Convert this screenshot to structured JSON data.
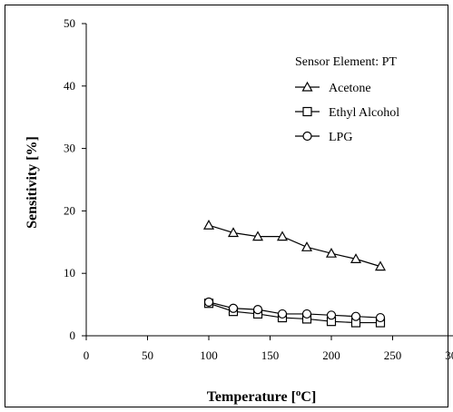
{
  "chart_data": {
    "type": "line",
    "title": "",
    "xlabel": "Temperature [°C]",
    "xlabel_parts": {
      "before": "Temperature [",
      "superscript": "o",
      "after": "C]"
    },
    "ylabel": "Sensitivity [%]",
    "xlim": [
      0,
      300
    ],
    "ylim": [
      0,
      50
    ],
    "xticks": [
      0,
      50,
      100,
      150,
      200,
      250,
      300
    ],
    "xtick_labels": [
      "0",
      "50",
      "100",
      "150",
      "200",
      "250",
      "300"
    ],
    "yticks": [
      0,
      10,
      20,
      30,
      40,
      50
    ],
    "ytick_labels": [
      "0",
      "10",
      "20",
      "30",
      "40",
      "50"
    ],
    "grid": false,
    "legend": {
      "title": "Sensor Element: PT",
      "placement": "top-right"
    },
    "x": [
      100,
      120,
      140,
      160,
      180,
      200,
      220,
      240
    ],
    "series": [
      {
        "name": "Acetone",
        "marker": "triangle",
        "values": [
          17.7,
          16.5,
          15.9,
          15.9,
          14.2,
          13.2,
          12.3,
          11.1
        ]
      },
      {
        "name": "Ethyl Alcohol",
        "marker": "square",
        "values": [
          5.2,
          3.9,
          3.5,
          2.9,
          2.7,
          2.3,
          2.1,
          2.1
        ]
      },
      {
        "name": "LPG",
        "marker": "circle",
        "values": [
          5.4,
          4.4,
          4.2,
          3.5,
          3.5,
          3.3,
          3.1,
          2.9
        ]
      }
    ],
    "colors": {
      "line": "#000000",
      "marker_fill": "#ffffff"
    }
  }
}
